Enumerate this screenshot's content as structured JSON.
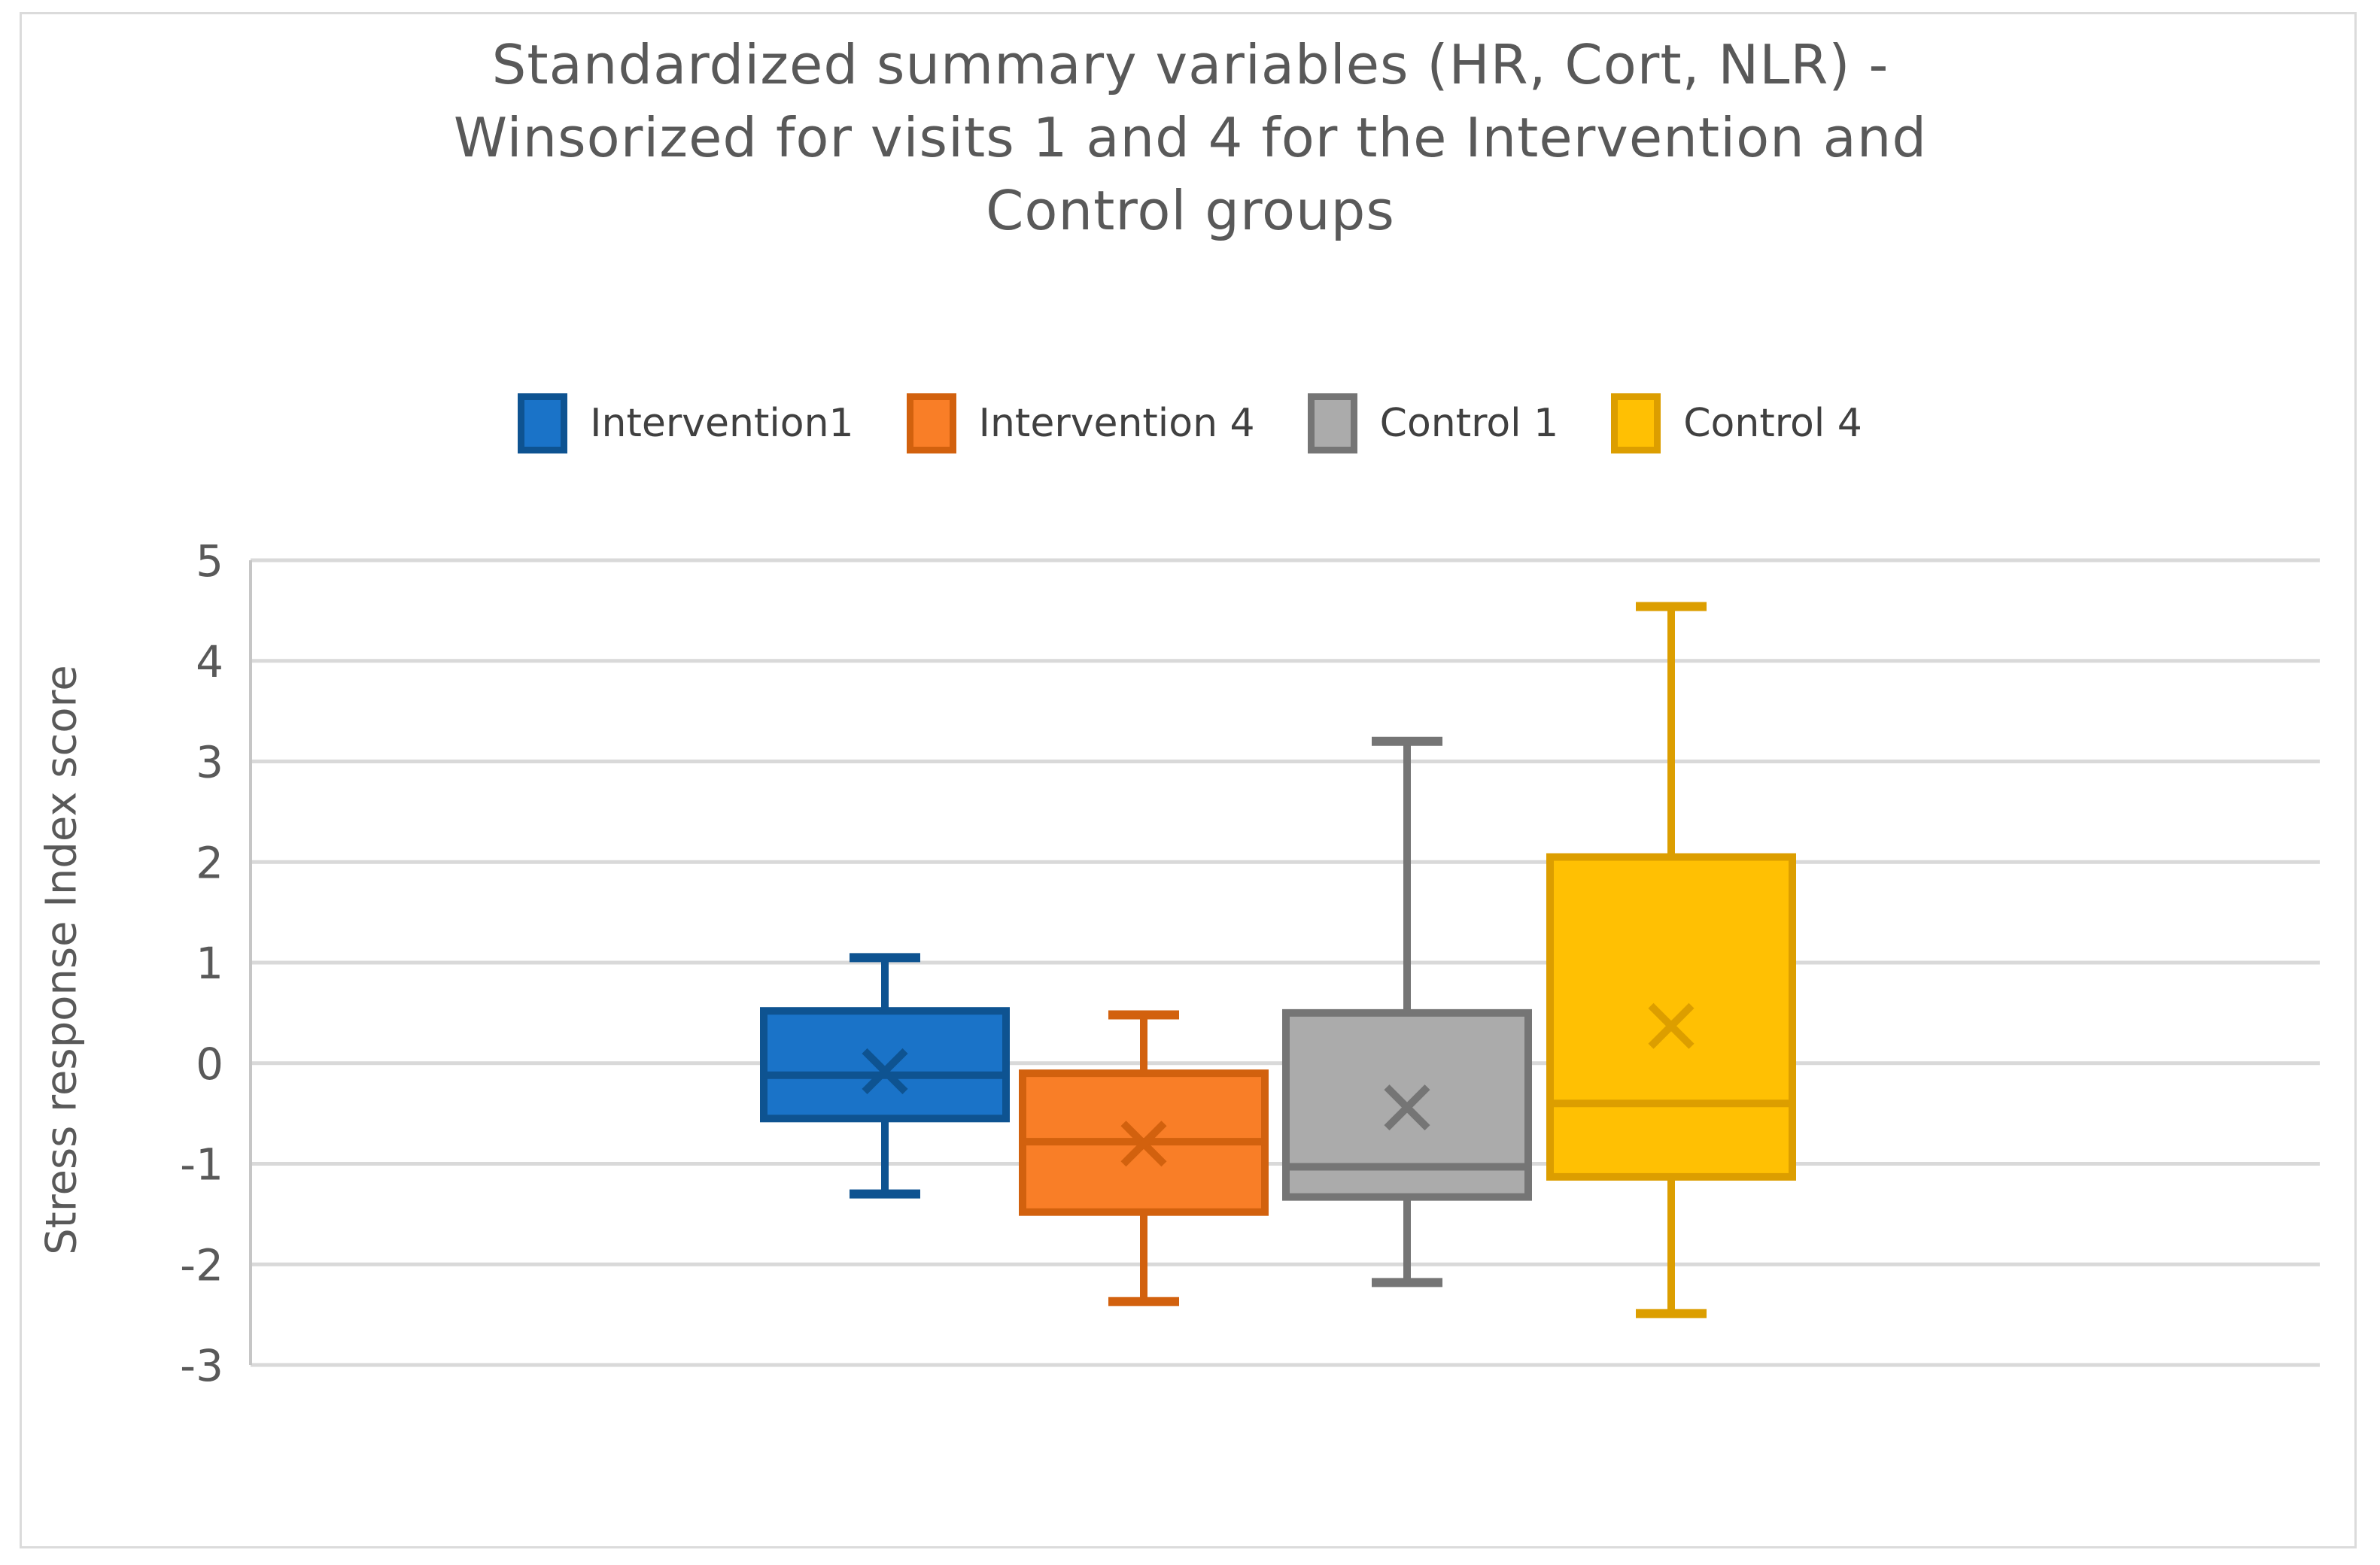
{
  "title": {
    "lines": [
      "Standardized summary variables (HR, Cort, NLR) -",
      "Winsorized for visits 1 and 4 for the Intervention and",
      "Control groups"
    ]
  },
  "colors": {
    "title_text": "#595959",
    "legend_text": "#404040",
    "gridline": "#d9d9d9",
    "axis_line": "#c6c6c6",
    "chart_border": "#dbdbdb",
    "background": "#ffffff"
  },
  "chart_data": {
    "type": "boxplot",
    "title": "Standardized summary variables (HR, Cort, NLR) - Winsorized for visits 1 and 4 for the Intervention and Control groups",
    "xlabel": "",
    "ylabel": "Stress response Index score",
    "ylim": [
      -3,
      5
    ],
    "yticks": [
      5,
      4,
      3,
      2,
      1,
      0,
      -1,
      -2,
      -3
    ],
    "grid": true,
    "legend_position": "top-center",
    "series": [
      {
        "name": "Intervention1",
        "fill": "#1a73c8",
        "stroke": "#0e5391",
        "whisker_low": -1.3,
        "q1": -0.55,
        "median": -0.12,
        "mean": -0.08,
        "q3": 0.52,
        "whisker_high": 1.05
      },
      {
        "name": "Intervention 4",
        "fill": "#f97e27",
        "stroke": "#d2610e",
        "whisker_low": -2.37,
        "q1": -1.48,
        "median": -0.78,
        "mean": -0.8,
        "q3": -0.1,
        "whisker_high": 0.48
      },
      {
        "name": "Control 1",
        "fill": "#ababab",
        "stroke": "#757575",
        "whisker_low": -2.18,
        "q1": -1.33,
        "median": -1.03,
        "mean": -0.44,
        "q3": 0.5,
        "whisker_high": 3.2
      },
      {
        "name": "Control 4",
        "fill": "#ffc003",
        "stroke": "#dc9e00",
        "whisker_low": -2.49,
        "q1": -1.13,
        "median": -0.4,
        "mean": 0.37,
        "q3": 2.05,
        "whisker_high": 4.54
      }
    ]
  }
}
